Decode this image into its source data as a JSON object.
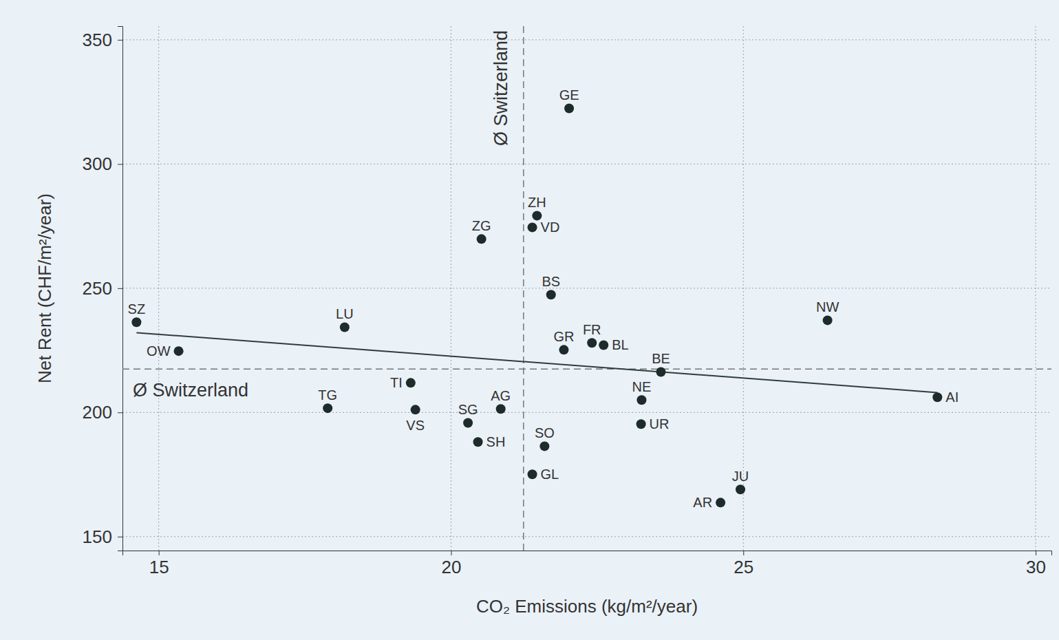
{
  "chart_data": {
    "type": "scatter",
    "x_label": "CO₂ Emissions (kg/m²/year)",
    "y_label": "Net Rent (CHF/m²/year)",
    "labels": [
      "SZ",
      "OW",
      "LU",
      "TG",
      "TI",
      "VS",
      "SG",
      "SH",
      "AG",
      "ZG",
      "ZH",
      "VD",
      "GE",
      "BS",
      "GR",
      "FR",
      "BL",
      "BE",
      "NE",
      "UR",
      "SO",
      "GL",
      "JU",
      "AR",
      "NW",
      "AI"
    ],
    "x": [
      14.62,
      15.34,
      18.18,
      17.89,
      19.31,
      19.39,
      20.29,
      20.46,
      20.85,
      20.52,
      21.47,
      21.39,
      22.02,
      21.71,
      21.93,
      22.41,
      22.61,
      23.59,
      23.26,
      23.25,
      21.6,
      21.39,
      24.95,
      24.61,
      26.44,
      28.32
    ],
    "values": [
      236.3,
      224.7,
      234.3,
      201.7,
      211.9,
      201.1,
      195.8,
      188.1,
      201.4,
      269.8,
      279.2,
      274.5,
      322.4,
      247.4,
      225.2,
      228.0,
      227.1,
      216.3,
      205.0,
      195.3,
      186.4,
      175.1,
      169.0,
      163.7,
      237.1,
      206.1
    ],
    "color": "#1e2b2b",
    "marker": "circle",
    "trend_line": {
      "x": [
        14.62,
        28.32
      ],
      "y": [
        232.1,
        208.0
      ]
    },
    "x_reference": {
      "value": 21.24,
      "label": "Ø Switzerland"
    },
    "y_reference": {
      "value": 217.5,
      "label": "Ø Switzerland"
    },
    "xlim": [
      14.38,
      30.27
    ],
    "ylim": [
      144.4,
      355.5
    ],
    "xticks": [
      15,
      20,
      25,
      30
    ],
    "yticks": [
      150,
      200,
      250,
      300,
      350
    ],
    "grid": true
  }
}
